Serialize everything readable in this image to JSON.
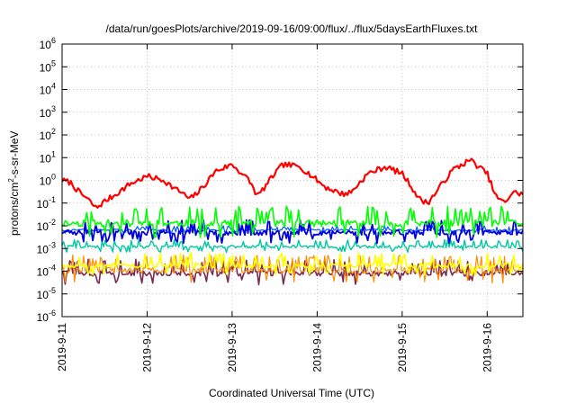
{
  "chart_data": {
    "type": "line",
    "title": "/data/run/goesPlots/archive/2019-09-16/09:00/flux/../flux/5daysEarthFluxes.txt",
    "xlabel": "Coordinated Universal Time (UTC)",
    "ylabel_parts": {
      "prefix": "protons/cm",
      "sup": "2",
      "suffix": "-s-sr-MeV"
    },
    "y_scale": "log",
    "ylim_exp": [
      -6,
      6
    ],
    "y_tick_exponents": [
      -6,
      -5,
      -4,
      -3,
      -2,
      -1,
      0,
      1,
      2,
      3,
      4,
      5,
      6
    ],
    "y_tick_base": "10",
    "xlim_days": [
      0,
      5.42
    ],
    "x_ticks": [
      {
        "day": 0,
        "label": "2019-9-11"
      },
      {
        "day": 1,
        "label": "2019-9-12"
      },
      {
        "day": 2,
        "label": "2019-9-13"
      },
      {
        "day": 3,
        "label": "2019-9-14"
      },
      {
        "day": 4,
        "label": "2019-9-15"
      },
      {
        "day": 5,
        "label": "2019-9-16"
      }
    ],
    "grid": true,
    "legend": "none",
    "series": [
      {
        "color": "#ff0000",
        "width": 2.2,
        "x": [
          0,
          0.1,
          0.2,
          0.3,
          0.4,
          0.5,
          0.6,
          0.8,
          1.0,
          1.2,
          1.3,
          1.4,
          1.5,
          1.6,
          1.7,
          1.8,
          2.0,
          2.2,
          2.3,
          2.4,
          2.5,
          2.6,
          2.8,
          3.0,
          3.1,
          3.2,
          3.3,
          3.4,
          3.5,
          3.6,
          3.8,
          4.0,
          4.1,
          4.2,
          4.3,
          4.4,
          4.5,
          4.6,
          4.8,
          5.0,
          5.1,
          5.2,
          5.3,
          5.42
        ],
        "y": [
          1.0,
          0.8,
          0.3,
          0.15,
          0.06,
          0.12,
          0.2,
          0.7,
          1.5,
          1.0,
          0.5,
          0.3,
          0.15,
          0.3,
          0.8,
          2.5,
          5.0,
          1.0,
          0.2,
          0.6,
          2.0,
          5.0,
          4.0,
          1.0,
          0.5,
          0.35,
          0.25,
          0.3,
          0.8,
          2.0,
          4.0,
          2.0,
          0.6,
          0.15,
          0.1,
          0.3,
          1.0,
          3.0,
          8.0,
          2.0,
          0.2,
          0.1,
          0.3,
          0.25
        ]
      },
      {
        "color": "#00ff00",
        "width": 1.6,
        "base": 0.013,
        "spread": 0.6,
        "seed": 11
      },
      {
        "color": "#0000dd",
        "width": 1.8,
        "base": 0.005,
        "spread": 0.45,
        "seed": 23
      },
      {
        "color": "#0055ff",
        "width": 1.2,
        "base": 0.0065,
        "spread": 0.15,
        "seed": 37
      },
      {
        "color": "#00c8a0",
        "width": 1.4,
        "base": 0.0012,
        "spread": 0.25,
        "seed": 41
      },
      {
        "color": "#ffff00",
        "width": 1.6,
        "base": 0.00018,
        "spread": 0.45,
        "seed": 53
      },
      {
        "color": "#ff8c00",
        "width": 1.2,
        "base": 0.00011,
        "spread": 0.55,
        "seed": 61
      },
      {
        "color": "#7a2a50",
        "width": 1.6,
        "base": 8e-05,
        "spread": 0.5,
        "seed": 73
      }
    ]
  }
}
